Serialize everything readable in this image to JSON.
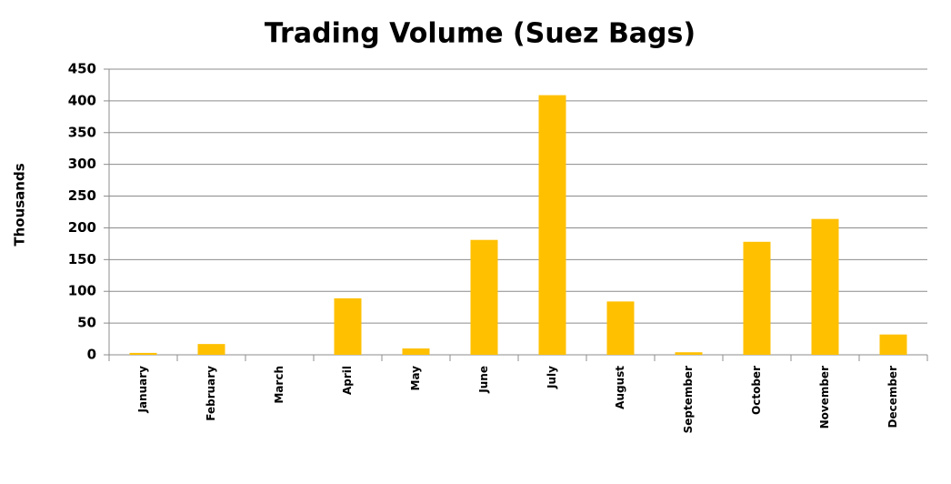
{
  "chart_data": {
    "type": "bar",
    "title": "Trading Volume (Suez Bags)",
    "y_label": "Thousands",
    "categories": [
      "January",
      "February",
      "March",
      "April",
      "May",
      "June",
      "July",
      "August",
      "September",
      "October",
      "November",
      "December"
    ],
    "values": [
      3,
      17,
      0,
      89,
      10,
      181,
      409,
      84,
      4,
      178,
      214,
      32
    ],
    "color": "#ffc000",
    "ylim": [
      0,
      450
    ],
    "yticks": [
      0,
      50,
      100,
      150,
      200,
      250,
      300,
      350,
      400,
      450
    ],
    "grid": true
  }
}
